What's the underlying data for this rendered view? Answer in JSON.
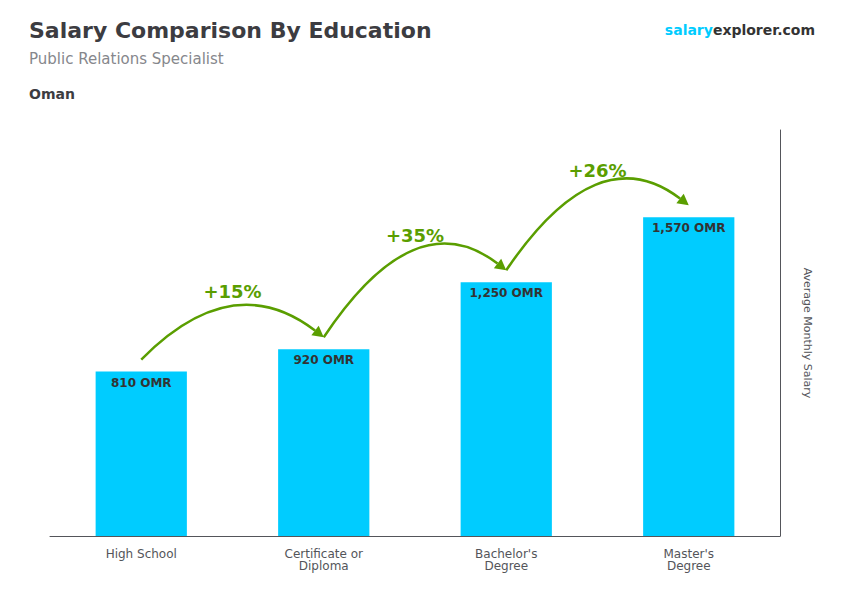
{
  "chart_data": {
    "type": "bar",
    "title": "Salary Comparison By Education",
    "subtitle": "Public Relations Specialist",
    "y_label": "Average Monthly Salary",
    "categories": [
      "High School",
      "Certificate or\nDiploma",
      "Bachelor's\nDegree",
      "Master's\nDegree"
    ],
    "values": [
      810,
      920,
      1250,
      1570
    ],
    "value_labels": [
      "810 OMR",
      "920 OMR",
      "1,250 OMR",
      "1,570 OMR"
    ],
    "data_labels": true,
    "color": "#00ccff",
    "ylim": [
      0,
      2000
    ],
    "grid": false,
    "tick_labels": "x",
    "annotations": [
      {
        "text": "Oman"
      },
      {
        "text": "salary"
      },
      {
        "text": "explorer.com"
      },
      {
        "text": "+15%",
        "from": "High School",
        "to": "Certificate or\nDiploma"
      },
      {
        "text": "+35%",
        "from": "Certificate or\nDiploma",
        "to": "Bachelor's\nDegree"
      },
      {
        "text": "+26%",
        "from": "Bachelor's\nDegree",
        "to": "Master's\nDegree"
      }
    ]
  }
}
